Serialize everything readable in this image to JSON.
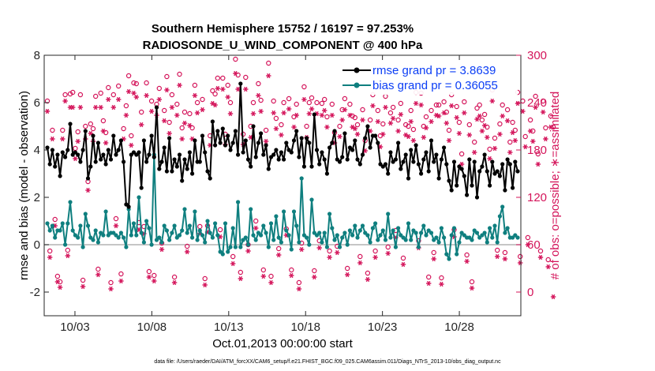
{
  "chart_data": {
    "type": "line",
    "title": "Southern Hemisphere 15752 / 16197 = 97.253%",
    "subtitle": "RADIOSONDE_U_WIND_COMPONENT @ 400 hPa",
    "xlabel": "Oct.01,2013 00:00:00 start",
    "ylabel_left": "rmse and bias (model - observation)",
    "ylabel_right": "# of obs: o=possible; ∗=assimilated",
    "footer": "data file: /Users/raeder/DAI/ATM_forcXX/CAM6_setup/f.e21.FHIST_BGC.f09_025.CAM6assim.011/Diags_NTrS_2013-10/obs_diag_output.nc",
    "x_ticks": [
      "10/03",
      "10/08",
      "10/13",
      "10/18",
      "10/23",
      "10/28"
    ],
    "x_tick_days": [
      3,
      8,
      13,
      18,
      23,
      28
    ],
    "xlim": [
      1,
      32
    ],
    "y_left_ticks": [
      "-2",
      "0",
      "2",
      "4",
      "6",
      "8"
    ],
    "y_left_values": [
      -2,
      0,
      2,
      4,
      6,
      8
    ],
    "ylim_left": [
      -3,
      8
    ],
    "y_right_ticks": [
      "0",
      "60",
      "120",
      "180",
      "240",
      "300"
    ],
    "y_right_values": [
      0,
      60,
      120,
      180,
      240,
      300
    ],
    "ylim_right": [
      -30,
      300
    ],
    "colors": {
      "rmse": "#000000",
      "bias": "#0f7f7f",
      "obs": "#d4145a",
      "legend_text": "#0b3ef5",
      "zero": "#b4b4b4",
      "axes": "#262626"
    },
    "series": [
      {
        "name": "rmse grand pr = 3.8639",
        "key": "rmse",
        "values": [
          4.1,
          3.4,
          4.0,
          3.3,
          3.8,
          2.9,
          3.9,
          3.7,
          4.0,
          5.1,
          3.8,
          3.9,
          3.8,
          3.5,
          4.0,
          4.8,
          2.8,
          3.3,
          4.6,
          3.5,
          4.3,
          3.6,
          3.8,
          3.4,
          4.0,
          3.6,
          4.6,
          3.8,
          4.0,
          4.4,
          3.5,
          1.7,
          1.6,
          3.8,
          3.9,
          3.8,
          3.9,
          2.4,
          4.4,
          3.5,
          3.8,
          4.6,
          3.7,
          5.8,
          3.2,
          3.5,
          4.1,
          3.1,
          4.5,
          3.1,
          3.6,
          3.3,
          3.8,
          2.7,
          3.6,
          3.2,
          3.9,
          3.0,
          4.4,
          3.5,
          3.5,
          4.6,
          3.9,
          3.1,
          2.8,
          5.2,
          4.2,
          4.8,
          4.3,
          4.9,
          4.2,
          4.6,
          4.0,
          4.3,
          4.8,
          3.8,
          6.8,
          3.9,
          4.4,
          3.6,
          3.3,
          5.0,
          3.7,
          4.3,
          4.7,
          3.8,
          4.2,
          3.2,
          3.7,
          3.8,
          4.0,
          3.6,
          3.9,
          3.6,
          4.3,
          4.0,
          3.9,
          4.4,
          4.8,
          3.7,
          4.5,
          3.3,
          4.5,
          4.3,
          3.3,
          5.5,
          4.0,
          3.4,
          3.9,
          3.6,
          3.0,
          4.1,
          4.3,
          4.8,
          3.6,
          3.5,
          3.7,
          4.7,
          3.6,
          4.1,
          4.0,
          4.4,
          3.6,
          3.4,
          3.8,
          4.5,
          5.0,
          4.1,
          4.6,
          4.6,
          4.3,
          3.4,
          3.3,
          3.4,
          3.0,
          3.9,
          3.5,
          3.6,
          4.3,
          3.2,
          3.5,
          3.8,
          2.8,
          4.0,
          3.5,
          4.2,
          3.4,
          3.0,
          3.6,
          3.9,
          3.1,
          4.4,
          3.5,
          3.8,
          2.8,
          3.6,
          4.1,
          3.4,
          2.7,
          2.3,
          3.5,
          2.5,
          3.3,
          3.2,
          2.9,
          2.1,
          3.6,
          2.5,
          3.5,
          2.0,
          3.1,
          3.3,
          3.8,
          3.1,
          2.5,
          3.5,
          3.0,
          3.1,
          2.9,
          3.4,
          2.3,
          3.6,
          3.4,
          2.4,
          3.5,
          3.1
        ],
        "grand": 3.8639
      },
      {
        "name": "bias grand pr = 0.36055",
        "key": "bias",
        "values": [
          0.9,
          0.6,
          0.8,
          0.3,
          0.6,
          0.6,
          0.9,
          0.0,
          0.9,
          1.8,
          0.6,
          0.4,
          0.3,
          0.8,
          -0.1,
          1.3,
          0.8,
          0.3,
          0.2,
          0.6,
          0.1,
          0.5,
          0.4,
          1.4,
          0.4,
          0.5,
          0.5,
          0.4,
          0.3,
          0.5,
          0.3,
          -0.1,
          1.5,
          0.4,
          0.9,
          0.4,
          2.0,
          0.5,
          0.1,
          1.0,
          0.7,
          0.0,
          3.8,
          0.2,
          0.3,
          0.1,
          0.8,
          0.6,
          0.2,
          0.5,
          0.8,
          0.3,
          0.4,
          0.6,
          1.5,
          0.5,
          0.8,
          0.3,
          1.4,
          0.2,
          0.6,
          0.4,
          0.1,
          1.0,
          0.5,
          0.3,
          0.9,
          0.4,
          -0.3,
          -0.4,
          0.9,
          -0.3,
          -0.1,
          0.7,
          -0.1,
          1.8,
          -0.1,
          0.2,
          0.3,
          0.0,
          1.5,
          0.4,
          0.2,
          0.5,
          0.4,
          0.8,
          0.5,
          -0.1,
          0.9,
          0.2,
          1.2,
          0.3,
          0.1,
          1.4,
          0.6,
          0.4,
          -0.2,
          1.4,
          0.8,
          0.1,
          2.8,
          0.4,
          0.3,
          0.0,
          1.9,
          0.5,
          0.4,
          0.5,
          0.1,
          0.5,
          -0.1,
          1.3,
          0.7,
          0.2,
          0.4,
          -0.1,
          0.3,
          0.5,
          0.0,
          0.6,
          0.4,
          0.8,
          0.3,
          0.6,
          0.8,
          0.5,
          0.4,
          0.1,
          0.7,
          0.9,
          0.2,
          0.4,
          0.6,
          0.2,
          1.3,
          0.3,
          0.6,
          -0.1,
          0.7,
          0.4,
          0.3,
          0.2,
          0.9,
          0.2,
          0.6,
          0.5,
          -0.1,
          0.5,
          0.8,
          0.4,
          0.6,
          0.5,
          0.2,
          0.3,
          0.1,
          0.7,
          0.3,
          -0.4,
          -0.6,
          0.4,
          0.7,
          -0.4,
          0.1,
          0.5,
          0.4,
          0.3,
          0.3,
          0.2,
          0.6,
          0.5,
          0.3,
          0.4,
          0.5,
          0.1,
          0.7,
          0.3,
          0.8,
          0.1,
          1.2,
          1.6,
          0.5,
          0.7,
          0.3,
          0.3,
          0.4,
          0.3
        ],
        "grand": 0.36055
      }
    ],
    "obs_possible_label": "o=possible",
    "obs_assimilated_label": "∗=assimilated",
    "obs_possible": [
      242,
      52,
      205,
      92,
      20,
      13,
      205,
      250,
      53,
      251,
      253,
      182,
      203,
      250,
      15,
      210,
      140,
      213,
      207,
      248,
      29,
      252,
      217,
      202,
      259,
      12,
      250,
      93,
      261,
      23,
      207,
      236,
      274,
      198,
      265,
      264,
      88,
      228,
      83,
      265,
      26,
      242,
      21,
      238,
      258,
      62,
      230,
      273,
      215,
      250,
      19,
      238,
      276,
      208,
      228,
      58,
      226,
      208,
      262,
      240,
      83,
      244,
      17,
      84,
      198,
      255,
      251,
      271,
      79,
      271,
      200,
      262,
      240,
      45,
      295,
      275,
      25,
      200,
      272,
      60,
      210,
      240,
      90,
      264,
      243,
      28,
      205,
      290,
      20,
      242,
      220,
      55,
      212,
      240,
      80,
      245,
      28,
      222,
      238,
      12,
      62,
      260,
      210,
      240,
      246,
      27,
      240,
      65,
      239,
      244,
      222,
      52,
      238,
      202,
      58,
      210,
      231,
      245,
      30,
      238,
      223,
      221,
      212,
      45,
      231,
      192,
      24,
      218,
      250,
      52,
      230,
      198,
      213,
      248,
      57,
      227,
      234,
      78,
      218,
      239,
      43,
      212,
      210,
      230,
      206,
      253,
      65,
      252,
      210,
      222,
      19,
      230,
      50,
      237,
      237,
      18,
      241,
      228,
      205,
      250,
      79,
      235,
      215,
      175,
      241,
      47,
      212,
      13,
      190,
      233,
      237,
      218,
      225,
      209,
      181,
      256,
      195,
      53,
      213,
      237,
      50,
      231,
      190,
      215,
      205,
      253,
      45,
      242,
      197,
      69,
      218,
      204,
      248,
      175,
      52,
      242,
      208,
      41,
      223,
      209
    ],
    "obs_assimilated": [
      235,
      50,
      200,
      90,
      19,
      12,
      200,
      248,
      52,
      240,
      240,
      175,
      197,
      240,
      13,
      200,
      135,
      207,
      197,
      240,
      28,
      240,
      210,
      195,
      250,
      10,
      240,
      90,
      250,
      20,
      200,
      230,
      260,
      192,
      258,
      253,
      85,
      218,
      80,
      255,
      25,
      235,
      20,
      230,
      250,
      60,
      223,
      262,
      207,
      240,
      18,
      230,
      268,
      200,
      220,
      57,
      217,
      200,
      255,
      233,
      80,
      237,
      15,
      82,
      192,
      245,
      243,
      264,
      76,
      263,
      193,
      253,
      232,
      42,
      283,
      263,
      23,
      193,
      263,
      58,
      202,
      232,
      87,
      255,
      235,
      26,
      197,
      280,
      18,
      233,
      213,
      53,
      205,
      233,
      78,
      238,
      27,
      215,
      230,
      10,
      60,
      250,
      202,
      232,
      238,
      25,
      232,
      62,
      230,
      236,
      215,
      50,
      230,
      195,
      56,
      203,
      224,
      237,
      28,
      230,
      215,
      213,
      206,
      43,
      224,
      185,
      22,
      210,
      242,
      50,
      222,
      190,
      206,
      240,
      55,
      220,
      226,
      75,
      210,
      231,
      41,
      205,
      203,
      222,
      198,
      245,
      62,
      243,
      202,
      214,
      17,
      222,
      48,
      230,
      229,
      16,
      233,
      220,
      198,
      242,
      76,
      227,
      207,
      168,
      233,
      45,
      205,
      11,
      183,
      225,
      229,
      210,
      217,
      202,
      175,
      248,
      188,
      51,
      206,
      229,
      48,
      223,
      183,
      208,
      198,
      245,
      43,
      235,
      190,
      66,
      210,
      197,
      240,
      168,
      50,
      234,
      200,
      38,
      215,
      0
    ]
  }
}
